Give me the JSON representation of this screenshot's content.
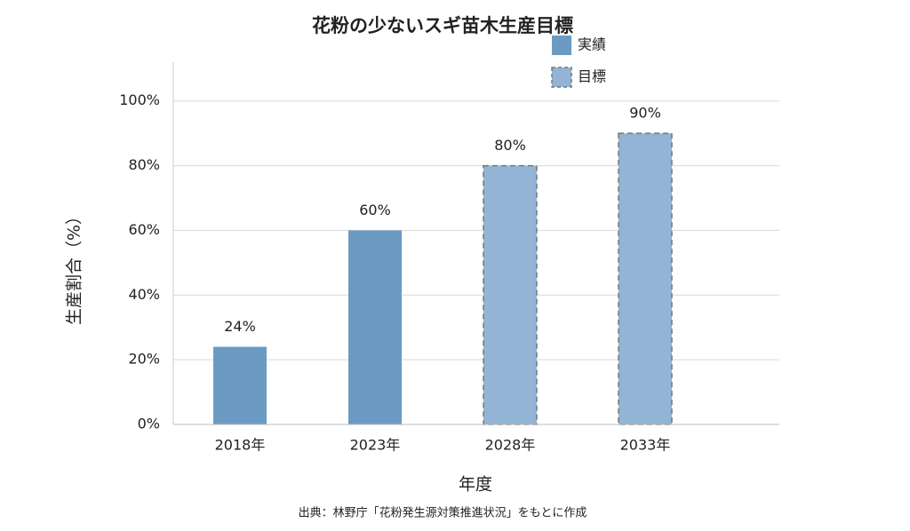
{
  "chart_data": {
    "type": "bar",
    "title": "花粉の少ないスギ苗木生産目標",
    "x_label": "年度",
    "y_label": "生産割合（%）",
    "source": "出典：林野庁「花粉発生源対策推進状況」をもとに作成",
    "categories": [
      "2018年",
      "2023年",
      "2028年",
      "2033年"
    ],
    "series": [
      {
        "name": "実績",
        "color": "#6b9bc3",
        "dashed": false,
        "values": [
          24,
          60,
          null,
          null
        ],
        "value_labels": [
          "24%",
          "60%",
          null,
          null
        ]
      },
      {
        "name": "目標",
        "color": "#93b4d4",
        "dashed": true,
        "values": [
          null,
          null,
          80,
          90
        ],
        "value_labels": [
          null,
          null,
          "80%",
          "90%"
        ]
      }
    ],
    "ylim": [
      0,
      112
    ],
    "yticks": [
      {
        "value": 0,
        "label": "0%"
      },
      {
        "value": 20,
        "label": "20%"
      },
      {
        "value": 40,
        "label": "40%"
      },
      {
        "value": 60,
        "label": "60%"
      },
      {
        "value": 80,
        "label": "80%"
      },
      {
        "value": 100,
        "label": "100%"
      }
    ],
    "grid": true
  }
}
